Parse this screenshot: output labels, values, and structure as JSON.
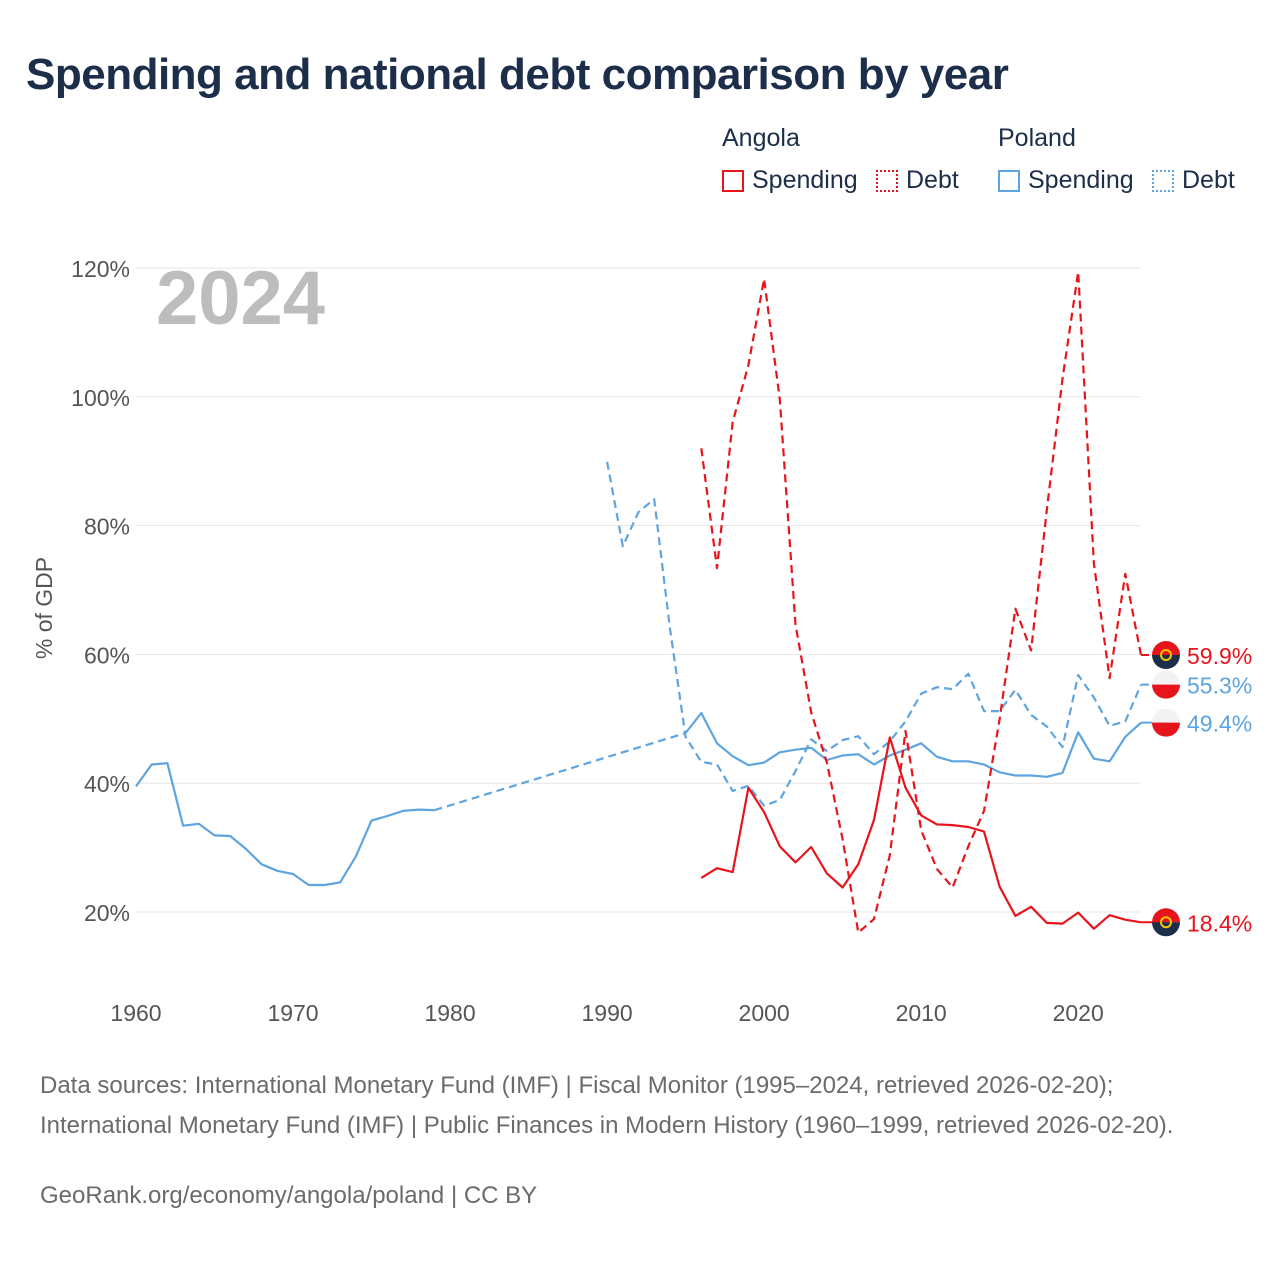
{
  "title": "Spending and national debt comparison by year",
  "legend": {
    "groups": [
      {
        "name": "Angola",
        "color": "#e8141c",
        "items": [
          {
            "label": "Spending",
            "style": "solid"
          },
          {
            "label": "Debt",
            "style": "dotted"
          }
        ]
      },
      {
        "name": "Poland",
        "color": "#5ea4e0",
        "items": [
          {
            "label": "Spending",
            "style": "solid"
          },
          {
            "label": "Debt",
            "style": "dotted"
          }
        ]
      }
    ]
  },
  "year_label": "2024",
  "chart_data": {
    "type": "line",
    "title": "Spending and national debt comparison by year",
    "xlabel": "",
    "ylabel": "% of GDP",
    "xlim": [
      1960,
      2024
    ],
    "ylim": [
      10,
      122
    ],
    "x_ticks": [
      1960,
      1970,
      1980,
      1990,
      2000,
      2010,
      2020
    ],
    "x_tick_labels": [
      "1960",
      "1970",
      "1980",
      "1990",
      "2000",
      "2010",
      "2020"
    ],
    "y_ticks": [
      20,
      40,
      60,
      80,
      100,
      120
    ],
    "y_tick_labels": [
      "20%",
      "40%",
      "60%",
      "80%",
      "100%",
      "120%"
    ],
    "grid": true,
    "series": [
      {
        "name": "Poland Spending",
        "country": "Poland",
        "metric": "Spending",
        "color": "#5ea4e0",
        "dash": "solid",
        "end_label": "49.4%",
        "points": [
          [
            1960,
            39.5
          ],
          [
            1961,
            42.9
          ],
          [
            1962,
            43.1
          ],
          [
            1963,
            33.4
          ],
          [
            1964,
            33.7
          ],
          [
            1965,
            31.9
          ],
          [
            1966,
            31.8
          ],
          [
            1967,
            29.8
          ],
          [
            1968,
            27.4
          ],
          [
            1969,
            26.4
          ],
          [
            1970,
            25.9
          ],
          [
            1971,
            24.2
          ],
          [
            1972,
            24.2
          ],
          [
            1973,
            24.6
          ],
          [
            1974,
            28.6
          ],
          [
            1975,
            34.2
          ],
          [
            1976,
            34.9
          ],
          [
            1977,
            35.7
          ],
          [
            1978,
            35.9
          ],
          [
            1979,
            35.8
          ],
          [
            1995,
            47.8
          ],
          [
            1996,
            50.9
          ],
          [
            1997,
            46.2
          ],
          [
            1998,
            44.2
          ],
          [
            1999,
            42.8
          ],
          [
            2000,
            43.2
          ],
          [
            2001,
            44.8
          ],
          [
            2002,
            45.2
          ],
          [
            2003,
            45.5
          ],
          [
            2004,
            43.6
          ],
          [
            2005,
            44.3
          ],
          [
            2006,
            44.5
          ],
          [
            2007,
            42.9
          ],
          [
            2008,
            44.3
          ],
          [
            2009,
            45.2
          ],
          [
            2010,
            46.2
          ],
          [
            2011,
            44.1
          ],
          [
            2012,
            43.4
          ],
          [
            2013,
            43.4
          ],
          [
            2014,
            42.9
          ],
          [
            2015,
            41.7
          ],
          [
            2016,
            41.2
          ],
          [
            2017,
            41.2
          ],
          [
            2018,
            41.0
          ],
          [
            2019,
            41.6
          ],
          [
            2020,
            47.9
          ],
          [
            2021,
            43.8
          ],
          [
            2022,
            43.4
          ],
          [
            2023,
            47.2
          ],
          [
            2024,
            49.4
          ]
        ],
        "bridge": [
          [
            1979,
            35.8
          ],
          [
            1995,
            47.8
          ]
        ]
      },
      {
        "name": "Poland Debt",
        "country": "Poland",
        "metric": "Debt",
        "color": "#5ea4e0",
        "dash": "dashed",
        "end_label": "55.3%",
        "points": [
          [
            1990,
            89.9
          ],
          [
            1991,
            76.8
          ],
          [
            1992,
            82.1
          ],
          [
            1993,
            84.1
          ],
          [
            1994,
            64.1
          ],
          [
            1995,
            47.2
          ],
          [
            1996,
            43.3
          ],
          [
            1997,
            42.9
          ],
          [
            1998,
            38.8
          ],
          [
            1999,
            39.6
          ],
          [
            2000,
            36.5
          ],
          [
            2001,
            37.4
          ],
          [
            2002,
            41.9
          ],
          [
            2003,
            46.8
          ],
          [
            2004,
            45.0
          ],
          [
            2005,
            46.7
          ],
          [
            2006,
            47.3
          ],
          [
            2007,
            44.5
          ],
          [
            2008,
            46.5
          ],
          [
            2009,
            49.6
          ],
          [
            2010,
            53.9
          ],
          [
            2011,
            54.9
          ],
          [
            2012,
            54.6
          ],
          [
            2013,
            57.0
          ],
          [
            2014,
            51.2
          ],
          [
            2015,
            51.2
          ],
          [
            2016,
            54.5
          ],
          [
            2017,
            50.6
          ],
          [
            2018,
            48.8
          ],
          [
            2019,
            45.6
          ],
          [
            2020,
            56.8
          ],
          [
            2021,
            53.3
          ],
          [
            2022,
            48.9
          ],
          [
            2023,
            49.6
          ],
          [
            2024,
            55.3
          ]
        ]
      },
      {
        "name": "Angola Spending",
        "country": "Angola",
        "metric": "Spending",
        "color": "#e8141c",
        "dash": "solid",
        "end_label": "18.4%",
        "points": [
          [
            1996,
            25.3
          ],
          [
            1997,
            26.8
          ],
          [
            1998,
            26.2
          ],
          [
            1999,
            39.3
          ],
          [
            2000,
            35.5
          ],
          [
            2001,
            30.2
          ],
          [
            2002,
            27.7
          ],
          [
            2003,
            30.1
          ],
          [
            2004,
            26.0
          ],
          [
            2005,
            23.8
          ],
          [
            2006,
            27.4
          ],
          [
            2007,
            34.3
          ],
          [
            2008,
            47.1
          ],
          [
            2009,
            39.3
          ],
          [
            2010,
            35.0
          ],
          [
            2011,
            33.6
          ],
          [
            2012,
            33.5
          ],
          [
            2013,
            33.2
          ],
          [
            2014,
            32.5
          ],
          [
            2015,
            23.9
          ],
          [
            2016,
            19.4
          ],
          [
            2017,
            20.8
          ],
          [
            2018,
            18.3
          ],
          [
            2019,
            18.2
          ],
          [
            2020,
            19.9
          ],
          [
            2021,
            17.4
          ],
          [
            2022,
            19.5
          ],
          [
            2023,
            18.8
          ],
          [
            2024,
            18.4
          ]
        ]
      },
      {
        "name": "Angola Debt",
        "country": "Angola",
        "metric": "Debt",
        "color": "#e8141c",
        "dash": "dashed",
        "end_label": "59.9%",
        "points": [
          [
            1996,
            92.0
          ],
          [
            1997,
            73.4
          ],
          [
            1998,
            96.1
          ],
          [
            1999,
            104.9
          ],
          [
            2000,
            118.3
          ],
          [
            2001,
            99.6
          ],
          [
            2002,
            64.6
          ],
          [
            2003,
            51.0
          ],
          [
            2004,
            43.2
          ],
          [
            2005,
            31.3
          ],
          [
            2006,
            16.8
          ],
          [
            2007,
            18.9
          ],
          [
            2008,
            28.8
          ],
          [
            2009,
            48.1
          ],
          [
            2010,
            32.7
          ],
          [
            2011,
            26.7
          ],
          [
            2012,
            23.8
          ],
          [
            2013,
            30.2
          ],
          [
            2014,
            35.7
          ],
          [
            2015,
            50.0
          ],
          [
            2016,
            67.1
          ],
          [
            2017,
            60.6
          ],
          [
            2018,
            82.4
          ],
          [
            2019,
            102.8
          ],
          [
            2020,
            119.4
          ],
          [
            2021,
            74.1
          ],
          [
            2022,
            56.3
          ],
          [
            2023,
            72.5
          ],
          [
            2024,
            59.9
          ]
        ]
      }
    ]
  },
  "sources": "Data sources: International Monetary Fund (IMF) | Fiscal Monitor (1995–2024, retrieved 2026-02-20); International Monetary Fund (IMF) | Public Finances in Modern History (1960–1999, retrieved 2026-02-20).",
  "credit": "GeoRank.org/economy/angola/poland | CC BY"
}
